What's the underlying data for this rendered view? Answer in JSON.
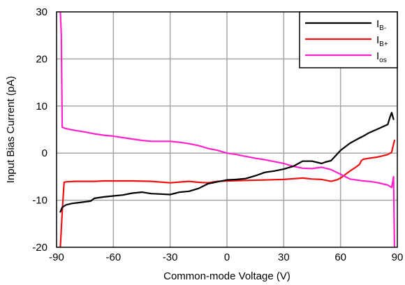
{
  "chart_data": {
    "type": "line",
    "xlabel": "Common-mode Voltage (V)",
    "ylabel": "Input Bias Current (pA)",
    "xlim": [
      -90,
      90
    ],
    "ylim": [
      -20,
      30
    ],
    "xticks": [
      -90,
      -60,
      -30,
      0,
      30,
      60,
      90
    ],
    "yticks": [
      -20,
      -10,
      0,
      10,
      20,
      30
    ],
    "xtick_labels": [
      "-90",
      "-60",
      "-30",
      "0",
      "30",
      "60",
      "90"
    ],
    "ytick_labels": [
      "-20",
      "-10",
      "0",
      "10",
      "20",
      "30"
    ],
    "grid": true,
    "legend_position": "top-right",
    "series": [
      {
        "name": "IB-",
        "label_main": "I",
        "label_sub": "B-",
        "color": "#000000",
        "x": [
          -88,
          -87,
          -85,
          -82,
          -78,
          -72,
          -70,
          -65,
          -60,
          -55,
          -50,
          -45,
          -40,
          -35,
          -30,
          -25,
          -20,
          -15,
          -10,
          -5,
          0,
          5,
          10,
          15,
          20,
          25,
          30,
          35,
          40,
          45,
          50,
          52,
          55,
          58,
          60,
          65,
          70,
          72,
          75,
          80,
          85,
          86,
          87,
          88
        ],
        "y": [
          -12.5,
          -11.5,
          -11,
          -10.7,
          -10.5,
          -10.2,
          -9.6,
          -9.3,
          -9.1,
          -8.9,
          -8.5,
          -8.3,
          -8.6,
          -8.7,
          -8.8,
          -8.3,
          -8.1,
          -7.5,
          -6.5,
          -6.1,
          -5.7,
          -5.6,
          -5.4,
          -4.8,
          -4.1,
          -3.8,
          -3.4,
          -2.8,
          -1.7,
          -1.7,
          -2.2,
          -1.9,
          -1.6,
          -0.3,
          0.6,
          2.1,
          3.2,
          3.6,
          4.3,
          5.2,
          6.1,
          7.5,
          8.6,
          7.2
        ]
      },
      {
        "name": "IB+",
        "label_main": "I",
        "label_sub": "B+",
        "color": "#ee1111",
        "x": [
          -88,
          -87,
          -86,
          -85,
          -80,
          -75,
          -70,
          -65,
          -60,
          -50,
          -40,
          -30,
          -20,
          -15,
          -10,
          -5,
          0,
          10,
          20,
          30,
          40,
          45,
          50,
          55,
          58,
          60,
          65,
          68,
          70,
          71,
          72,
          75,
          80,
          85,
          87,
          88,
          88.5
        ],
        "y": [
          -20,
          -12.5,
          -6.2,
          -6.1,
          -6.0,
          -6.0,
          -6.0,
          -5.9,
          -5.9,
          -5.9,
          -6.0,
          -6.3,
          -6.0,
          -6.2,
          -6.3,
          -6.0,
          -5.9,
          -5.8,
          -5.7,
          -5.6,
          -5.3,
          -5.5,
          -5.6,
          -6.0,
          -5.7,
          -5.3,
          -3.8,
          -3.0,
          -2.4,
          -1.6,
          -1.3,
          -1.1,
          -0.8,
          -0.3,
          0.2,
          1.9,
          2.7
        ]
      },
      {
        "name": "Ios",
        "label_main": "I",
        "label_sub": "os",
        "color": "#ff22cc",
        "x": [
          -88,
          -87.5,
          -87,
          -85,
          -80,
          -75,
          -70,
          -65,
          -60,
          -55,
          -50,
          -45,
          -40,
          -35,
          -30,
          -25,
          -20,
          -15,
          -10,
          -5,
          0,
          5,
          10,
          15,
          20,
          25,
          30,
          35,
          40,
          45,
          50,
          55,
          60,
          65,
          70,
          72,
          75,
          80,
          85,
          87,
          88,
          88.5
        ],
        "y": [
          30,
          25,
          5.5,
          5.2,
          4.8,
          4.5,
          4.1,
          3.8,
          3.6,
          3.3,
          3.0,
          2.7,
          2.5,
          2.5,
          2.5,
          2.3,
          2.0,
          1.6,
          1.0,
          0.6,
          0,
          -0.3,
          -0.7,
          -1.1,
          -1.4,
          -1.8,
          -2.2,
          -2.8,
          -3.2,
          -3.3,
          -3.0,
          -3.5,
          -4.5,
          -5.5,
          -5.8,
          -5.9,
          -6.0,
          -6.3,
          -6.8,
          -7.3,
          -5,
          -20
        ]
      }
    ]
  }
}
